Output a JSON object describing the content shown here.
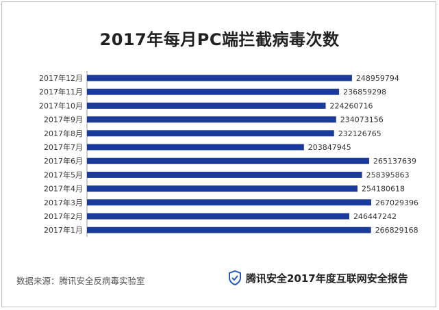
{
  "title": "2017年每月PC端拦截病毒次数",
  "footer": {
    "source": "数据来源：腾讯安全反病毒实验室",
    "brand": "腾讯安全2017年度互联网安全报告",
    "brand_icon": "shield-icon"
  },
  "colors": {
    "bar": "#1a3a9c",
    "text": "#333333"
  },
  "chart_data": {
    "type": "bar",
    "orientation": "horizontal",
    "title": "2017年每月PC端拦截病毒次数",
    "xlabel": "",
    "ylabel": "",
    "grid": false,
    "categories": [
      "2017年12月",
      "2017年11月",
      "2017年10月",
      "2017年9月",
      "2017年8月",
      "2017年7月",
      "2017年6月",
      "2017年5月",
      "2017年4月",
      "2017年3月",
      "2017年2月",
      "2017年1月"
    ],
    "values": [
      248959794,
      236859298,
      224260716,
      234073156,
      232126765,
      203847945,
      265137639,
      258395863,
      254180618,
      267029396,
      246447242,
      266829168
    ],
    "value_labels": [
      "248959794",
      "236859298",
      "224260716",
      "234073156",
      "232126765",
      "203847945",
      "265137639",
      "258395863",
      "254180618",
      "267029396",
      "246447242",
      "266829168"
    ]
  }
}
